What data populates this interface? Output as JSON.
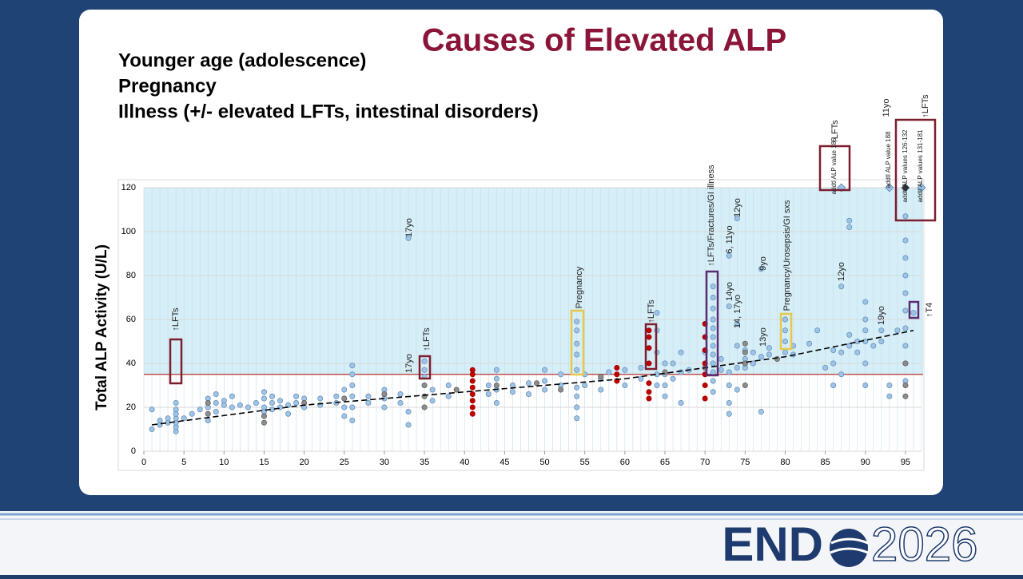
{
  "slide": {
    "title": "Causes of Elevated ALP",
    "bullets": [
      "Younger age (adolescence)",
      "Pregnancy",
      "Illness (+/- elevated LFTs, intestinal disorders)"
    ]
  },
  "footer": {
    "logo_bold": "END",
    "logo_year": "2026"
  },
  "chart_data": {
    "type": "scatter",
    "ylabel": "Total ALP Activity (U/L)",
    "xlim": [
      0,
      97
    ],
    "ylim": [
      0,
      120
    ],
    "xticks": [
      0,
      5,
      10,
      15,
      20,
      25,
      30,
      35,
      40,
      45,
      50,
      55,
      60,
      65,
      70,
      75,
      80,
      85,
      90,
      95
    ],
    "yticks": [
      0,
      20,
      40,
      60,
      80,
      100,
      120
    ],
    "grid": true,
    "reference_line": 35,
    "reference_color": "#c0504d",
    "shaded_above": 35,
    "shade_color": "#d5eef8",
    "series": [
      {
        "color": "#9dc3e6",
        "marker": "circle",
        "x": [
          1,
          1,
          2,
          2,
          3,
          3,
          4,
          4,
          4,
          4,
          4,
          4,
          4,
          5,
          6,
          7,
          8,
          8,
          8,
          9,
          9,
          9,
          10,
          10,
          11,
          11,
          12,
          13,
          14,
          15,
          15,
          15,
          15,
          16,
          16,
          16,
          17,
          17,
          18,
          18,
          19,
          19,
          20,
          20,
          22,
          22,
          24,
          24,
          25,
          25,
          25,
          25,
          26,
          26,
          26,
          26,
          26,
          26,
          28,
          28,
          30,
          30,
          30,
          32,
          32,
          33,
          33,
          33,
          35,
          35,
          35,
          36,
          36,
          38,
          38,
          43,
          43,
          44,
          44,
          44,
          44,
          46,
          46,
          48,
          48,
          50,
          50,
          50,
          52,
          52,
          54,
          54,
          54,
          54,
          54,
          54,
          54,
          54,
          54,
          55,
          55,
          57,
          57,
          58,
          60,
          60,
          62,
          62,
          64,
          64,
          64,
          64,
          64,
          65,
          65,
          65,
          65,
          66,
          66,
          67,
          67,
          67,
          68,
          70,
          70,
          71,
          71,
          71,
          71,
          71,
          71,
          71,
          71,
          71,
          71,
          71,
          71,
          72,
          72,
          73,
          73,
          73,
          73,
          73,
          73,
          74,
          74,
          74,
          74,
          74,
          75,
          75,
          75,
          76,
          76,
          77,
          77,
          77,
          78,
          78,
          80,
          80,
          80,
          80,
          81,
          81,
          83,
          84,
          85,
          86,
          86,
          86,
          87,
          87,
          87,
          88,
          88,
          88,
          88,
          89,
          89,
          90,
          90,
          90,
          90,
          90,
          90,
          91,
          92,
          92,
          93,
          93,
          94,
          95,
          95,
          95,
          95,
          95,
          95,
          95,
          95,
          95,
          95,
          96
        ],
        "values": [
          10,
          19,
          12,
          14,
          13,
          15,
          9,
          11,
          13,
          15,
          17,
          19,
          22,
          15,
          17,
          19,
          14,
          20,
          24,
          18,
          22,
          26,
          21,
          23,
          20,
          25,
          21,
          20,
          22,
          18,
          20,
          24,
          27,
          19,
          22,
          25,
          20,
          23,
          17,
          21,
          22,
          25,
          20,
          24,
          21,
          24,
          22,
          25,
          16,
          20,
          24,
          28,
          14,
          20,
          25,
          30,
          35,
          39,
          22,
          25,
          20,
          24,
          28,
          22,
          26,
          12,
          18,
          97,
          34,
          37,
          41,
          23,
          28,
          25,
          30,
          26,
          30,
          22,
          28,
          33,
          37,
          27,
          30,
          26,
          31,
          28,
          32,
          37,
          30,
          35,
          15,
          20,
          25,
          29,
          37,
          44,
          49,
          55,
          59,
          30,
          35,
          28,
          33,
          36,
          30,
          37,
          33,
          38,
          30,
          35,
          45,
          55,
          63,
          25,
          30,
          35,
          40,
          33,
          40,
          22,
          36,
          45,
          37,
          38,
          45,
          27,
          32,
          36,
          40,
          44,
          48,
          52,
          56,
          60,
          65,
          70,
          75,
          37,
          42,
          17,
          22,
          30,
          36,
          66,
          89,
          28,
          38,
          48,
          58,
          106,
          38,
          42,
          46,
          40,
          45,
          18,
          43,
          83,
          44,
          47,
          45,
          50,
          55,
          60,
          44,
          48,
          49,
          55,
          38,
          30,
          40,
          46,
          35,
          45,
          75,
          48,
          53,
          102,
          105,
          45,
          50,
          30,
          40,
          50,
          55,
          60,
          68,
          48,
          50,
          55,
          25,
          30,
          55,
          32,
          40,
          48,
          56,
          64,
          72,
          80,
          88,
          96,
          107,
          63
        ]
      },
      {
        "color": "#8c8c8c",
        "marker": "circle",
        "x": [
          8,
          8,
          15,
          15,
          20,
          25,
          30,
          35,
          35,
          35,
          39,
          44,
          49,
          52,
          57,
          65,
          70,
          75,
          75,
          75,
          75,
          79,
          95,
          95,
          95
        ],
        "values": [
          17,
          22,
          13,
          16,
          22,
          24,
          26,
          20,
          25,
          30,
          28,
          30,
          31,
          28,
          34,
          36,
          38,
          30,
          40,
          45,
          49,
          42,
          25,
          30,
          40
        ]
      },
      {
        "color": "#c00000",
        "marker": "circle",
        "x": [
          41,
          41,
          41,
          41,
          41,
          41,
          41,
          41,
          59,
          59,
          59,
          63,
          63,
          63,
          63,
          63,
          63,
          63,
          70,
          70,
          70,
          70,
          70,
          70,
          70
        ],
        "values": [
          17,
          20,
          23,
          26,
          29,
          32,
          35,
          37,
          32,
          35,
          38,
          24,
          27,
          31,
          40,
          47,
          52,
          55,
          24,
          30,
          35,
          40,
          46,
          52,
          58
        ]
      },
      {
        "color": "#9dc3e6",
        "marker": "diamond",
        "x": [
          87,
          93,
          97
        ],
        "values": [
          120,
          120,
          120
        ]
      },
      {
        "color": "#333333",
        "marker": "diamond",
        "x": [
          95
        ],
        "values": [
          120
        ]
      }
    ],
    "trendline": {
      "color": "#000000",
      "x": [
        1,
        20,
        40,
        60,
        80,
        96
      ],
      "values": [
        12,
        21,
        27,
        33,
        43,
        55
      ]
    },
    "annotations": [
      "↑LFTs",
      "17yo",
      "17yo",
      "↑LFTs",
      "Pregnancy",
      "↑LFTs",
      "↑LFTs/Fractures/GI illness",
      "6, 11yo",
      "12yo",
      "14yo",
      "14, 17yo",
      "9yo",
      "13yo",
      "Pregnancy/Urosepsis/GI sxs",
      "12yo",
      "19yo",
      "↑LFTs",
      "addtl ALP value 185",
      "addtl ALP value 188",
      "11yo",
      "addtl ALP values 126-132",
      "addtl ALP values 131-181",
      "↑LFTs",
      "↑T4"
    ]
  }
}
